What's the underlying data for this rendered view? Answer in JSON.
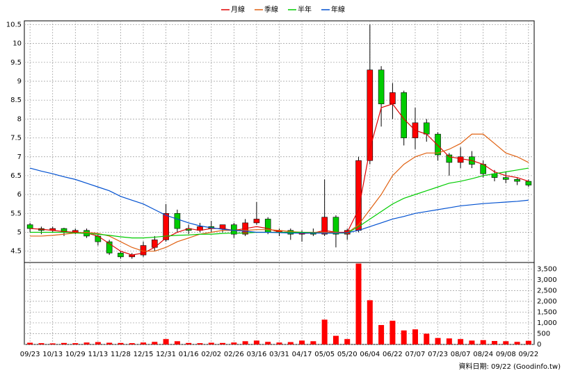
{
  "chart_data": {
    "type": "candlestick",
    "categories": [
      "09/23",
      null,
      "10/13",
      null,
      "10/29",
      null,
      "11/13",
      null,
      "11/28",
      null,
      "12/15",
      null,
      "12/31",
      null,
      "01/16",
      null,
      "02/02",
      null,
      "02/26",
      null,
      "03/16",
      null,
      "03/31",
      null,
      "04/17",
      null,
      "05/05",
      null,
      "05/20",
      null,
      "06/04",
      null,
      "06/22",
      null,
      "07/07",
      null,
      "07/23",
      null,
      "08/07",
      null,
      "08/24",
      null,
      "09/08",
      null,
      "09/22"
    ],
    "open": [
      5.2,
      5.1,
      5.05,
      5.1,
      5.0,
      5.05,
      4.9,
      4.75,
      4.45,
      4.35,
      4.4,
      4.6,
      4.8,
      5.5,
      5.1,
      5.05,
      5.15,
      5.1,
      5.2,
      4.95,
      5.25,
      5.35,
      5.0,
      5.05,
      4.95,
      5.0,
      4.95,
      5.4,
      4.95,
      5.05,
      6.9,
      9.3,
      8.4,
      8.7,
      7.5,
      7.9,
      7.6,
      7.05,
      6.85,
      7.0,
      6.8,
      6.55,
      6.45,
      6.4,
      6.35
    ],
    "high": [
      5.25,
      5.15,
      5.15,
      5.12,
      5.1,
      5.1,
      4.95,
      4.8,
      4.5,
      4.45,
      4.75,
      4.9,
      5.75,
      5.6,
      5.2,
      5.25,
      5.3,
      5.2,
      5.25,
      5.35,
      5.8,
      5.4,
      5.1,
      5.1,
      5.05,
      5.1,
      6.4,
      5.45,
      5.1,
      7.0,
      10.5,
      9.4,
      8.95,
      8.75,
      8.3,
      8.0,
      7.65,
      7.1,
      7.25,
      7.15,
      6.9,
      6.65,
      6.6,
      6.45,
      6.4
    ],
    "low": [
      5.0,
      4.95,
      5.0,
      4.9,
      4.95,
      4.85,
      4.65,
      4.4,
      4.3,
      4.3,
      4.35,
      4.5,
      4.75,
      5.0,
      4.95,
      5.0,
      5.0,
      5.0,
      4.85,
      4.9,
      5.2,
      4.95,
      4.9,
      4.8,
      4.75,
      4.9,
      4.9,
      4.6,
      4.8,
      5.0,
      6.8,
      7.8,
      8.0,
      7.3,
      7.2,
      7.4,
      6.9,
      6.5,
      6.7,
      6.7,
      6.45,
      6.35,
      6.3,
      6.25,
      6.2
    ],
    "close": [
      5.1,
      5.05,
      5.1,
      5.0,
      5.05,
      4.9,
      4.75,
      4.45,
      4.35,
      4.4,
      4.65,
      4.8,
      5.5,
      5.1,
      5.05,
      5.15,
      5.1,
      5.2,
      4.95,
      5.25,
      5.35,
      5.0,
      5.05,
      4.95,
      5.0,
      4.95,
      5.4,
      4.95,
      5.05,
      6.9,
      9.3,
      8.4,
      8.7,
      7.5,
      7.9,
      7.6,
      7.05,
      6.85,
      7.0,
      6.8,
      6.55,
      6.45,
      6.4,
      6.35,
      6.25
    ],
    "up_color": "#ff0000",
    "down_color": "#00cc00",
    "series": [
      {
        "name": "月線",
        "color": "#e00000",
        "values": [
          5.1,
          5.08,
          5.05,
          5.02,
          5.0,
          4.98,
          4.9,
          4.7,
          4.5,
          4.4,
          4.45,
          4.6,
          4.85,
          5.0,
          5.1,
          5.05,
          5.1,
          5.1,
          5.05,
          5.1,
          5.15,
          5.1,
          5.0,
          5.0,
          4.97,
          4.98,
          5.05,
          5.0,
          5.0,
          5.6,
          7.2,
          8.3,
          8.4,
          8.0,
          7.7,
          7.6,
          7.3,
          7.0,
          6.95,
          6.9,
          6.8,
          6.6,
          6.5,
          6.45,
          6.35
        ]
      },
      {
        "name": "季線",
        "color": "#e06010",
        "values": [
          4.9,
          4.9,
          4.92,
          4.95,
          4.98,
          5.0,
          4.97,
          4.9,
          4.75,
          4.6,
          4.5,
          4.5,
          4.6,
          4.75,
          4.85,
          4.95,
          5.0,
          5.05,
          5.05,
          5.05,
          5.07,
          5.07,
          5.05,
          5.02,
          5.0,
          5.0,
          5.0,
          5.0,
          4.98,
          5.2,
          5.6,
          6.0,
          6.5,
          6.8,
          7.0,
          7.1,
          7.1,
          7.2,
          7.35,
          7.6,
          7.6,
          7.35,
          7.1,
          7.0,
          6.85
        ]
      },
      {
        "name": "半年",
        "color": "#00cc00",
        "values": [
          5.0,
          5.0,
          5.0,
          5.0,
          4.98,
          4.97,
          4.95,
          4.92,
          4.88,
          4.85,
          4.85,
          4.87,
          4.9,
          4.92,
          4.93,
          4.95,
          4.95,
          4.97,
          4.98,
          4.98,
          5.0,
          5.0,
          5.0,
          5.0,
          5.0,
          4.99,
          4.98,
          4.98,
          4.98,
          5.15,
          5.35,
          5.55,
          5.75,
          5.9,
          6.0,
          6.1,
          6.2,
          6.3,
          6.35,
          6.42,
          6.5,
          6.55,
          6.6,
          6.65,
          6.7
        ]
      },
      {
        "name": "年線",
        "color": "#0050d0",
        "values": [
          6.7,
          6.62,
          6.55,
          6.47,
          6.4,
          6.3,
          6.2,
          6.1,
          5.95,
          5.85,
          5.75,
          5.6,
          5.45,
          5.35,
          5.25,
          5.17,
          5.12,
          5.08,
          5.05,
          5.03,
          5.0,
          5.0,
          4.99,
          4.98,
          4.98,
          4.98,
          4.98,
          4.98,
          4.99,
          5.05,
          5.15,
          5.25,
          5.35,
          5.42,
          5.5,
          5.55,
          5.6,
          5.65,
          5.7,
          5.73,
          5.76,
          5.78,
          5.8,
          5.82,
          5.85
        ]
      }
    ],
    "ylim": [
      4.2,
      10.6
    ],
    "yticks": [
      4.5,
      5,
      5.5,
      6,
      6.5,
      7,
      7.5,
      8,
      8.5,
      9,
      9.5,
      10,
      10.5
    ],
    "volume": {
      "color": "#ff0000",
      "values": [
        80,
        60,
        50,
        70,
        60,
        90,
        110,
        80,
        70,
        60,
        90,
        120,
        250,
        150,
        70,
        60,
        80,
        70,
        90,
        150,
        180,
        120,
        90,
        110,
        180,
        150,
        1150,
        400,
        250,
        3750,
        2050,
        900,
        1100,
        650,
        700,
        500,
        300,
        280,
        250,
        180,
        200,
        160,
        150,
        120,
        170
      ],
      "ylim": [
        0,
        3800
      ],
      "yticks": [
        0,
        500,
        {
          "value": 1000,
          "label": "1,000"
        },
        {
          "value": 1500,
          "label": "1,500"
        },
        {
          "value": 2000,
          "label": "2,000"
        },
        {
          "value": 2500,
          "label": "2,500"
        },
        {
          "value": 3000,
          "label": "3,000"
        },
        {
          "value": 3500,
          "label": "3,500"
        }
      ]
    },
    "grid": true,
    "footnote": "資料日期: 09/22 (Goodinfo.tw)"
  }
}
